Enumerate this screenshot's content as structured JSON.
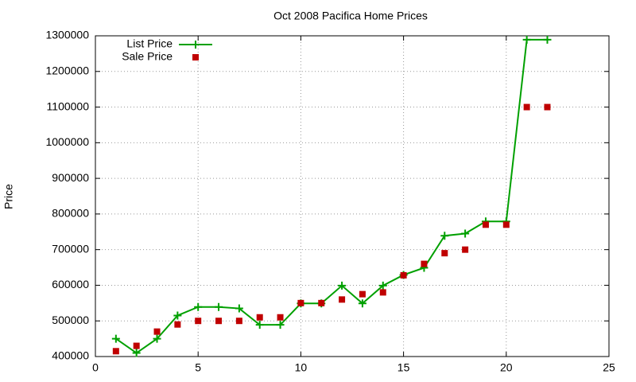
{
  "chart_data": {
    "type": "line",
    "title": "Oct 2008 Pacifica Home Prices",
    "y_label": "Price",
    "x": [
      1,
      2,
      3,
      4,
      5,
      6,
      7,
      8,
      9,
      10,
      11,
      12,
      13,
      14,
      15,
      16,
      17,
      18,
      19,
      20,
      21,
      22
    ],
    "series": [
      {
        "name": "List Price",
        "color": "#00a000",
        "style": "linespoints",
        "values": [
          450000,
          410000,
          450000,
          515000,
          539000,
          539000,
          535000,
          489000,
          489000,
          549000,
          549000,
          599000,
          549000,
          599000,
          629000,
          649000,
          739000,
          745000,
          779000,
          779000,
          1289000,
          1289000
        ]
      },
      {
        "name": "Sale Price",
        "color": "#c00000",
        "style": "points",
        "values": [
          415000,
          430000,
          470000,
          490000,
          500000,
          500000,
          500000,
          510000,
          510000,
          550000,
          550000,
          560000,
          575000,
          580000,
          628000,
          660000,
          690000,
          700000,
          770000,
          770000,
          1100000,
          1100000
        ]
      }
    ],
    "xlim": [
      0,
      25
    ],
    "xticks": [
      0,
      5,
      10,
      15,
      20,
      25
    ],
    "ylim": [
      400000,
      1300000
    ],
    "yticks": [
      400000,
      500000,
      600000,
      700000,
      800000,
      900000,
      1000000,
      1100000,
      1200000,
      1300000
    ],
    "grid": true,
    "legend": "top-left"
  }
}
